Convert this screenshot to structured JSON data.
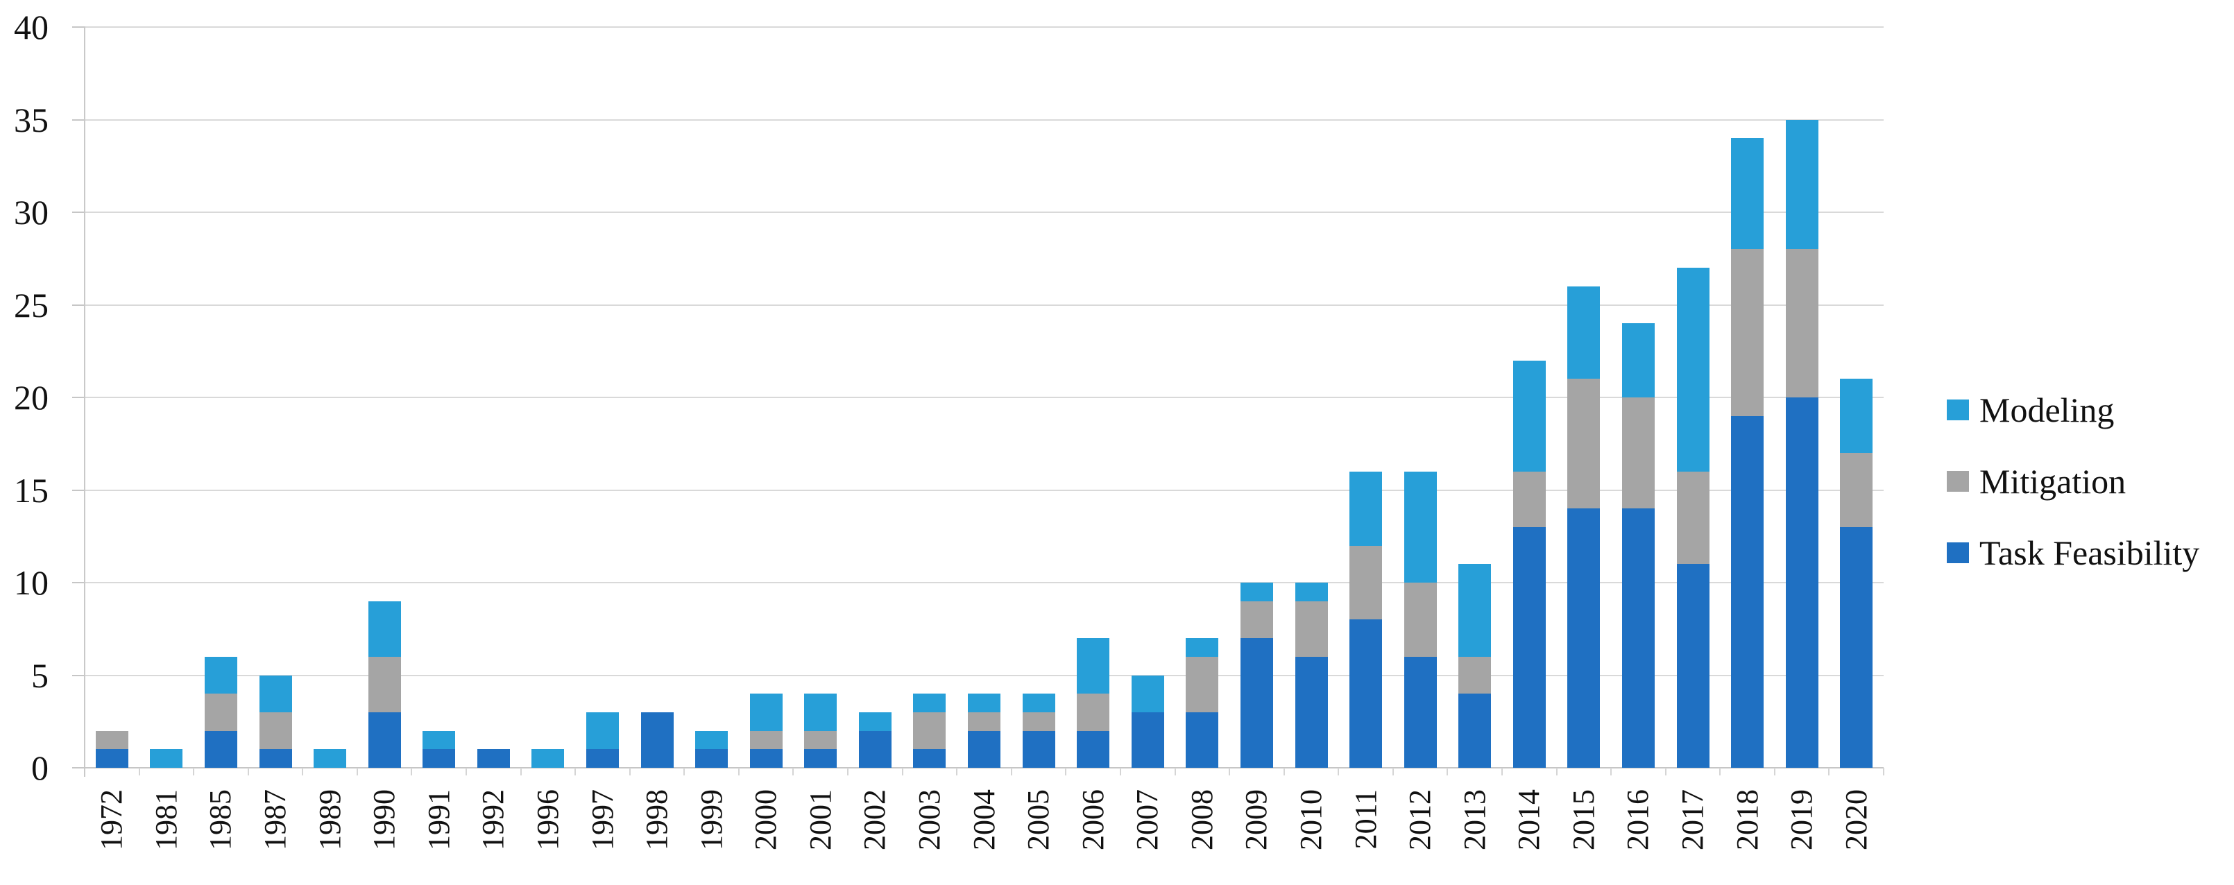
{
  "chart_data": {
    "type": "bar",
    "stacked": true,
    "title": "",
    "xlabel": "",
    "ylabel": "",
    "ylim": [
      0,
      40
    ],
    "y_ticks": [
      0,
      5,
      10,
      15,
      20,
      25,
      30,
      35,
      40
    ],
    "grid": true,
    "legend_position": "right",
    "categories": [
      "1972",
      "1981",
      "1985",
      "1987",
      "1989",
      "1990",
      "1991",
      "1992",
      "1996",
      "1997",
      "1998",
      "1999",
      "2000",
      "2001",
      "2002",
      "2003",
      "2004",
      "2005",
      "2006",
      "2007",
      "2008",
      "2009",
      "2010",
      "2011",
      "2012",
      "2013",
      "2014",
      "2015",
      "2016",
      "2017",
      "2018",
      "2019",
      "2020"
    ],
    "series": [
      {
        "name": "Task Feasibility",
        "color": "#1f70c2",
        "values": [
          1,
          0,
          2,
          1,
          0,
          3,
          1,
          1,
          0,
          1,
          3,
          1,
          1,
          1,
          2,
          1,
          2,
          2,
          2,
          3,
          3,
          7,
          6,
          8,
          6,
          4,
          13,
          14,
          14,
          11,
          19,
          20,
          13
        ]
      },
      {
        "name": "Mitigation",
        "color": "#a5a5a5",
        "values": [
          1,
          0,
          2,
          2,
          0,
          3,
          0,
          0,
          0,
          0,
          0,
          0,
          1,
          1,
          0,
          2,
          1,
          1,
          2,
          0,
          3,
          2,
          3,
          4,
          4,
          2,
          3,
          7,
          6,
          5,
          9,
          8,
          4
        ]
      },
      {
        "name": "Modeling",
        "color": "#279fd8",
        "values": [
          0,
          1,
          2,
          2,
          1,
          3,
          1,
          0,
          1,
          2,
          0,
          1,
          2,
          2,
          1,
          1,
          1,
          1,
          3,
          2,
          1,
          1,
          1,
          4,
          6,
          5,
          6,
          5,
          4,
          11,
          6,
          7,
          4
        ]
      }
    ],
    "legend": [
      {
        "label": "Modeling",
        "color": "#279fd8"
      },
      {
        "label": "Mitigation",
        "color": "#a5a5a5"
      },
      {
        "label": "Task Feasibility",
        "color": "#1f70c2"
      }
    ]
  },
  "colors": {
    "gridline": "#d9d9d9",
    "axis": "#c6c6c6",
    "text": "#111111",
    "background": "#ffffff"
  }
}
